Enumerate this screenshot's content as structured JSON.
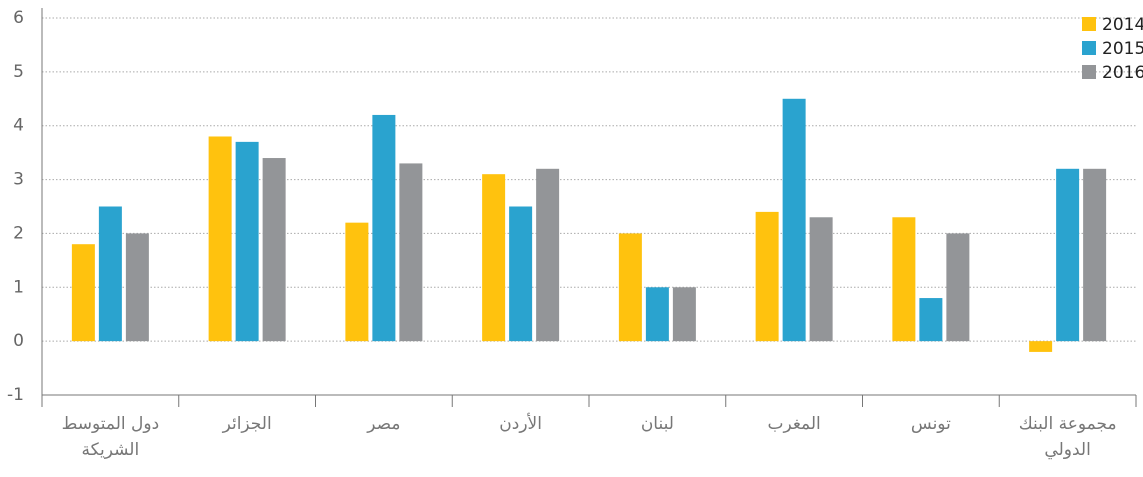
{
  "chart_data": {
    "type": "bar",
    "categories": [
      "دول المتوسط الشريكة",
      "الجزائر",
      "مصر",
      "الأردن",
      "لبنان",
      "المغرب",
      "تونس",
      "مجموعة البنك الدولي"
    ],
    "series": [
      {
        "name": "2014",
        "color": "#ffc20e",
        "values": [
          1.8,
          3.8,
          2.2,
          3.1,
          2.0,
          2.4,
          2.3,
          -0.2
        ]
      },
      {
        "name": "2015",
        "color": "#2aa3cf",
        "values": [
          2.5,
          3.7,
          4.2,
          2.5,
          1.0,
          4.5,
          0.8,
          3.2
        ]
      },
      {
        "name": "2016",
        "color": "#939598",
        "values": [
          2.0,
          3.4,
          3.3,
          3.2,
          1.0,
          2.3,
          2.0,
          3.2
        ]
      }
    ],
    "ylim": [
      -1,
      6
    ],
    "yticks": [
      -1,
      0,
      1,
      2,
      3,
      4,
      5,
      6
    ],
    "grid": true,
    "legend": "upper right"
  }
}
